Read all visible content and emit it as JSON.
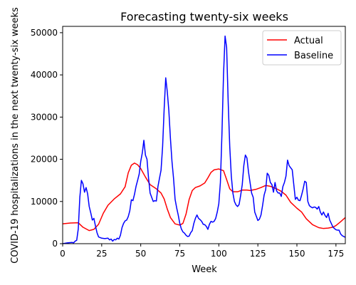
{
  "chart_data": {
    "type": "line",
    "title": "Forecasting twenty-six weeks",
    "xlabel": "Week",
    "ylabel": "COVID-19 hospitalizations in the next twenty-six weeks",
    "xlim": [
      0,
      181
    ],
    "ylim": [
      0,
      51500
    ],
    "xticks": [
      0,
      25,
      50,
      75,
      100,
      125,
      150,
      175
    ],
    "yticks": [
      0,
      10000,
      20000,
      30000,
      40000,
      50000
    ],
    "legend_position": "top-right",
    "grid": false,
    "series": [
      {
        "name": "Actual",
        "color": "#ff0000",
        "points": [
          [
            0,
            4700
          ],
          [
            5,
            4900
          ],
          [
            10,
            4950
          ],
          [
            13,
            3900
          ],
          [
            17,
            3100
          ],
          [
            20,
            3400
          ],
          [
            23,
            4600
          ],
          [
            26,
            7200
          ],
          [
            29,
            9100
          ],
          [
            33,
            10600
          ],
          [
            37,
            11800
          ],
          [
            40,
            13500
          ],
          [
            42,
            16800
          ],
          [
            44,
            18600
          ],
          [
            46,
            19100
          ],
          [
            48,
            18700
          ],
          [
            50,
            17800
          ],
          [
            53,
            15800
          ],
          [
            56,
            14000
          ],
          [
            60,
            13000
          ],
          [
            63,
            12000
          ],
          [
            65,
            10600
          ],
          [
            67,
            8200
          ],
          [
            69,
            6200
          ],
          [
            72,
            4700
          ],
          [
            75,
            4400
          ],
          [
            77,
            4800
          ],
          [
            79,
            7000
          ],
          [
            81,
            10500
          ],
          [
            83,
            12600
          ],
          [
            85,
            13300
          ],
          [
            88,
            13700
          ],
          [
            91,
            14400
          ],
          [
            93,
            15600
          ],
          [
            95,
            16900
          ],
          [
            97,
            17500
          ],
          [
            100,
            17700
          ],
          [
            103,
            17300
          ],
          [
            105,
            15200
          ],
          [
            107,
            13000
          ],
          [
            109,
            12300
          ],
          [
            112,
            12300
          ],
          [
            115,
            12700
          ],
          [
            118,
            12700
          ],
          [
            120,
            12600
          ],
          [
            124,
            12900
          ],
          [
            127,
            13300
          ],
          [
            130,
            13800
          ],
          [
            133,
            13600
          ],
          [
            137,
            13000
          ],
          [
            140,
            12400
          ],
          [
            143,
            11500
          ],
          [
            146,
            9800
          ],
          [
            150,
            8400
          ],
          [
            153,
            7500
          ],
          [
            156,
            5900
          ],
          [
            160,
            4500
          ],
          [
            164,
            3800
          ],
          [
            167,
            3600
          ],
          [
            170,
            3700
          ],
          [
            173,
            3900
          ],
          [
            175,
            4300
          ],
          [
            178,
            5200
          ],
          [
            181,
            6200
          ]
        ]
      },
      {
        "name": "Baseline",
        "color": "#0000ff",
        "points": [
          [
            0,
            0
          ],
          [
            3,
            200
          ],
          [
            6,
            300
          ],
          [
            7,
            200
          ],
          [
            8,
            600
          ],
          [
            9,
            800
          ],
          [
            10,
            3500
          ],
          [
            11,
            11000
          ],
          [
            12,
            15000
          ],
          [
            13,
            14200
          ],
          [
            14,
            12200
          ],
          [
            15,
            13300
          ],
          [
            16,
            11800
          ],
          [
            17,
            8800
          ],
          [
            18,
            7300
          ],
          [
            19,
            5600
          ],
          [
            20,
            6000
          ],
          [
            21,
            4200
          ],
          [
            22,
            2600
          ],
          [
            23,
            1600
          ],
          [
            25,
            1300
          ],
          [
            27,
            1200
          ],
          [
            29,
            1300
          ],
          [
            30,
            900
          ],
          [
            31,
            1100
          ],
          [
            32,
            600
          ],
          [
            33,
            1000
          ],
          [
            34,
            900
          ],
          [
            35,
            1300
          ],
          [
            36,
            1100
          ],
          [
            37,
            2000
          ],
          [
            38,
            3800
          ],
          [
            39,
            4800
          ],
          [
            40,
            5400
          ],
          [
            41,
            5600
          ],
          [
            42,
            6400
          ],
          [
            43,
            7800
          ],
          [
            44,
            10400
          ],
          [
            45,
            10200
          ],
          [
            46,
            11700
          ],
          [
            47,
            13600
          ],
          [
            48,
            15000
          ],
          [
            49,
            16500
          ],
          [
            50,
            19500
          ],
          [
            51,
            21500
          ],
          [
            52,
            24500
          ],
          [
            53,
            21000
          ],
          [
            54,
            20000
          ],
          [
            55,
            15500
          ],
          [
            56,
            12000
          ],
          [
            57,
            11000
          ],
          [
            58,
            10000
          ],
          [
            59,
            10200
          ],
          [
            60,
            10100
          ],
          [
            61,
            13500
          ],
          [
            62,
            15500
          ],
          [
            63,
            17400
          ],
          [
            64,
            23000
          ],
          [
            65,
            32000
          ],
          [
            66,
            39300
          ],
          [
            67,
            36000
          ],
          [
            68,
            31500
          ],
          [
            69,
            25000
          ],
          [
            70,
            19500
          ],
          [
            71,
            15500
          ],
          [
            72,
            10500
          ],
          [
            73,
            8500
          ],
          [
            74,
            6800
          ],
          [
            75,
            4800
          ],
          [
            76,
            3500
          ],
          [
            77,
            2800
          ],
          [
            78,
            2500
          ],
          [
            79,
            2000
          ],
          [
            80,
            1700
          ],
          [
            81,
            1800
          ],
          [
            82,
            2600
          ],
          [
            83,
            3100
          ],
          [
            84,
            4800
          ],
          [
            85,
            6000
          ],
          [
            86,
            6800
          ],
          [
            87,
            6000
          ],
          [
            88,
            5700
          ],
          [
            89,
            5300
          ],
          [
            90,
            4600
          ],
          [
            91,
            4500
          ],
          [
            92,
            4100
          ],
          [
            93,
            3400
          ],
          [
            94,
            4600
          ],
          [
            95,
            5300
          ],
          [
            96,
            5100
          ],
          [
            97,
            5300
          ],
          [
            98,
            6000
          ],
          [
            99,
            7500
          ],
          [
            100,
            9500
          ],
          [
            101,
            14500
          ],
          [
            102,
            26000
          ],
          [
            103,
            40000
          ],
          [
            104,
            49200
          ],
          [
            105,
            46500
          ],
          [
            106,
            33500
          ],
          [
            107,
            23000
          ],
          [
            108,
            16000
          ],
          [
            109,
            12000
          ],
          [
            110,
            10000
          ],
          [
            111,
            9200
          ],
          [
            112,
            8800
          ],
          [
            113,
            9300
          ],
          [
            114,
            11500
          ],
          [
            115,
            14000
          ],
          [
            116,
            18500
          ],
          [
            117,
            21000
          ],
          [
            118,
            20300
          ],
          [
            119,
            17000
          ],
          [
            120,
            14500
          ],
          [
            121,
            12000
          ],
          [
            122,
            11000
          ],
          [
            123,
            7500
          ],
          [
            124,
            6500
          ],
          [
            125,
            5500
          ],
          [
            126,
            5800
          ],
          [
            127,
            6800
          ],
          [
            128,
            9000
          ],
          [
            129,
            11500
          ],
          [
            130,
            12800
          ],
          [
            131,
            16700
          ],
          [
            132,
            16200
          ],
          [
            133,
            14500
          ],
          [
            134,
            14000
          ],
          [
            135,
            12200
          ],
          [
            136,
            14500
          ],
          [
            137,
            12500
          ],
          [
            138,
            12000
          ],
          [
            139,
            12000
          ],
          [
            140,
            11200
          ],
          [
            141,
            13500
          ],
          [
            142,
            14500
          ],
          [
            143,
            16000
          ],
          [
            144,
            19800
          ],
          [
            145,
            18500
          ],
          [
            146,
            18000
          ],
          [
            147,
            17500
          ],
          [
            148,
            14000
          ],
          [
            149,
            10500
          ],
          [
            150,
            11000
          ],
          [
            151,
            10300
          ],
          [
            152,
            10200
          ],
          [
            153,
            11500
          ],
          [
            154,
            13000
          ],
          [
            155,
            14800
          ],
          [
            156,
            14500
          ],
          [
            157,
            10000
          ],
          [
            158,
            9000
          ],
          [
            159,
            8700
          ],
          [
            160,
            8500
          ],
          [
            161,
            8700
          ],
          [
            162,
            8600
          ],
          [
            163,
            8200
          ],
          [
            164,
            8800
          ],
          [
            165,
            7500
          ],
          [
            166,
            6800
          ],
          [
            167,
            7500
          ],
          [
            168,
            6700
          ],
          [
            169,
            6200
          ],
          [
            170,
            7200
          ],
          [
            171,
            5600
          ],
          [
            172,
            4800
          ],
          [
            173,
            4000
          ],
          [
            174,
            3600
          ],
          [
            175,
            3300
          ],
          [
            176,
            3200
          ],
          [
            177,
            3200
          ],
          [
            178,
            2300
          ],
          [
            179,
            1900
          ],
          [
            180,
            1700
          ],
          [
            181,
            1500
          ]
        ]
      }
    ]
  }
}
